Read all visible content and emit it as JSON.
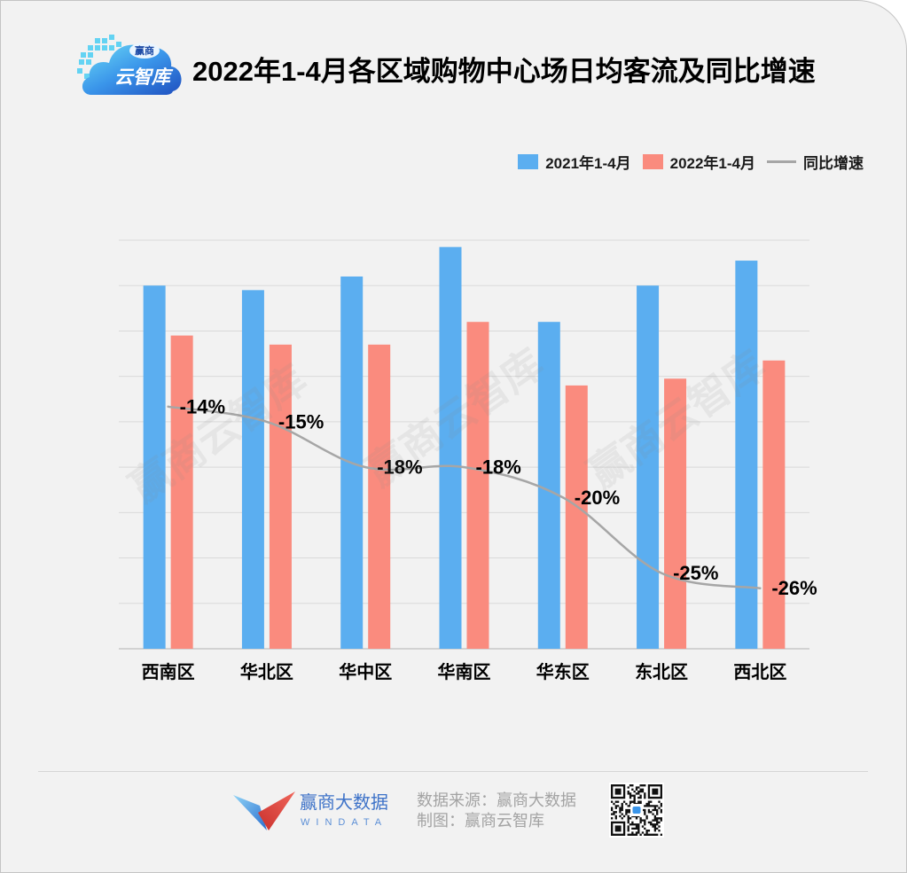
{
  "logo": {
    "brand_small": "赢商",
    "brand_main": "云智库"
  },
  "watermark": "赢商云智库",
  "chart_data": {
    "type": "bar",
    "title": "2022年1-4月各区域购物中心场日均客流及同比增速",
    "categories": [
      "西南区",
      "华北区",
      "华中区",
      "华南区",
      "华东区",
      "东北区",
      "西北区"
    ],
    "series": [
      {
        "name": "2021年1-4月",
        "type": "bar",
        "color": "#5BAEF0",
        "values": [
          8.0,
          7.9,
          8.2,
          8.85,
          7.2,
          8.0,
          8.55
        ]
      },
      {
        "name": "2022年1-4月",
        "type": "bar",
        "color": "#FA8B7E",
        "values": [
          6.9,
          6.7,
          6.7,
          7.2,
          5.8,
          5.95,
          6.35
        ]
      },
      {
        "name": "同比增速",
        "type": "line",
        "color": "#A6A6A6",
        "values": [
          -14,
          -15,
          -18,
          -18,
          -20,
          -25,
          -26
        ],
        "labels": [
          "-14%",
          "-15%",
          "-18%",
          "-18%",
          "-20%",
          "-25%",
          "-26%"
        ]
      }
    ],
    "ylim": [
      0,
      9
    ],
    "y_tick_labels": false,
    "grid": true,
    "legend_position": "top-right"
  },
  "footer": {
    "brand_cn": "赢商大数据",
    "brand_en": "WINDATA",
    "source": "数据来源：赢商大数据",
    "made_by": "制图：赢商云智库"
  }
}
